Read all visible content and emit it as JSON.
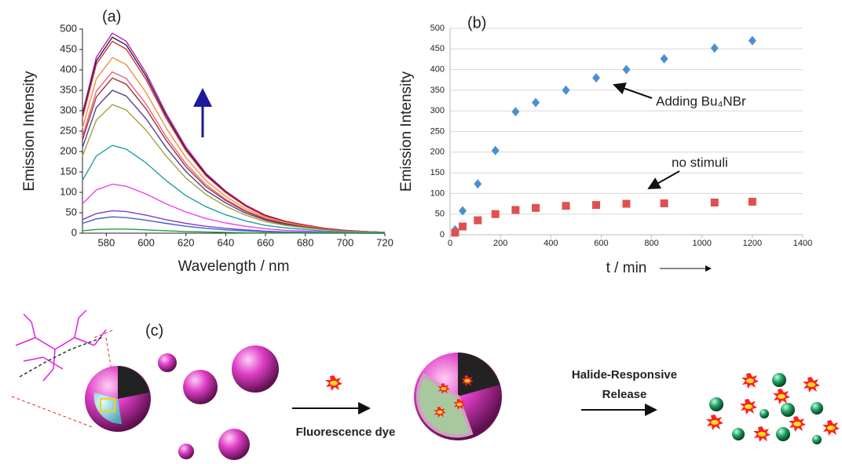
{
  "chart_data": [
    {
      "type": "line",
      "annotation": "(a)",
      "x_label": "Wavelength / nm",
      "y_label": "Emission Intensity",
      "x": [
        568,
        575,
        583,
        590,
        600,
        610,
        620,
        630,
        640,
        650,
        660,
        670,
        680,
        690,
        700,
        710,
        720
      ],
      "series": [
        {
          "color": "#c0209a",
          "values": [
            294,
            431,
            490,
            470,
            392,
            294,
            211,
            147,
            103,
            69,
            44,
            29,
            20,
            12,
            7,
            4,
            2
          ]
        },
        {
          "color": "#1c1c5c",
          "values": [
            288,
            422,
            480,
            461,
            384,
            288,
            206,
            144,
            101,
            67,
            43,
            29,
            19,
            12,
            7,
            4,
            2
          ]
        },
        {
          "color": "#d83030",
          "values": [
            282,
            414,
            470,
            451,
            376,
            282,
            202,
            141,
            99,
            66,
            42,
            28,
            19,
            12,
            7,
            4,
            2
          ]
        },
        {
          "color": "#f49040",
          "values": [
            258,
            378,
            430,
            413,
            344,
            258,
            185,
            129,
            90,
            60,
            39,
            26,
            17,
            11,
            6,
            3,
            2
          ]
        },
        {
          "color": "#f0607a",
          "values": [
            237,
            348,
            395,
            379,
            316,
            237,
            170,
            119,
            83,
            55,
            36,
            24,
            16,
            10,
            6,
            3,
            2
          ]
        },
        {
          "color": "#a03434",
          "values": [
            228,
            334,
            380,
            365,
            304,
            228,
            163,
            114,
            80,
            53,
            34,
            23,
            15,
            10,
            6,
            3,
            2
          ]
        },
        {
          "color": "#504090",
          "values": [
            210,
            308,
            350,
            336,
            280,
            210,
            151,
            105,
            74,
            49,
            32,
            21,
            14,
            9,
            5,
            3,
            1
          ]
        },
        {
          "color": "#a4a040",
          "values": [
            189,
            277,
            315,
            302,
            252,
            189,
            135,
            95,
            66,
            44,
            28,
            19,
            13,
            8,
            5,
            3,
            1
          ]
        },
        {
          "color": "#20a0a0",
          "values": [
            129,
            189,
            215,
            206,
            172,
            129,
            92,
            65,
            45,
            30,
            19,
            13,
            9,
            5,
            3,
            2,
            1
          ]
        },
        {
          "color": "#f040f0",
          "values": [
            72,
            106,
            120,
            115,
            96,
            72,
            52,
            36,
            25,
            17,
            11,
            7,
            5,
            3,
            2,
            1,
            0
          ]
        },
        {
          "color": "#8040c8",
          "values": [
            33,
            48,
            55,
            53,
            44,
            33,
            24,
            17,
            12,
            8,
            5,
            3,
            2,
            1,
            1,
            0,
            0
          ]
        },
        {
          "color": "#4060d0",
          "values": [
            24,
            35,
            40,
            38,
            32,
            24,
            17,
            12,
            8,
            6,
            4,
            2,
            2,
            1,
            1,
            0,
            0
          ]
        },
        {
          "color": "#20a040",
          "values": [
            6,
            9,
            10,
            10,
            8,
            6,
            4,
            3,
            2,
            1,
            1,
            1,
            0,
            0,
            0,
            0,
            0
          ]
        }
      ],
      "xlim": [
        568,
        720
      ],
      "xticks": [
        580,
        600,
        620,
        640,
        660,
        680,
        700,
        720
      ],
      "ylim": [
        0,
        500
      ],
      "yticks": [
        0,
        50,
        100,
        150,
        200,
        250,
        300,
        350,
        400,
        450,
        500
      ],
      "grid": false
    },
    {
      "type": "scatter",
      "annotation": "(b)",
      "x_label": "t / min",
      "y_label": "Emission Intensity",
      "notes": [
        "Adding Bu₄NBr",
        "no stimuli"
      ],
      "x": [
        20,
        50,
        110,
        180,
        260,
        340,
        460,
        580,
        700,
        850,
        1050,
        1200
      ],
      "series": [
        {
          "color": "#4a90d0",
          "marker": "diamond",
          "values": [
            12,
            58,
            123,
            204,
            298,
            320,
            350,
            380,
            400,
            426,
            452,
            470
          ]
        },
        {
          "color": "#e05050",
          "marker": "square",
          "values": [
            5,
            20,
            35,
            50,
            60,
            65,
            70,
            72,
            75,
            76,
            78,
            80
          ]
        }
      ],
      "xlim": [
        0,
        1400
      ],
      "xticks": [
        0,
        200,
        400,
        600,
        800,
        1000,
        1200,
        1400
      ],
      "ylim": [
        0,
        500
      ],
      "yticks": [
        0,
        50,
        100,
        150,
        200,
        250,
        300,
        350,
        400,
        450,
        500
      ],
      "grid": true
    }
  ],
  "diagram": {
    "label": "(c)",
    "step1": "Fluorescence dye",
    "step2": [
      "Halide-Responsive",
      "Release"
    ]
  }
}
